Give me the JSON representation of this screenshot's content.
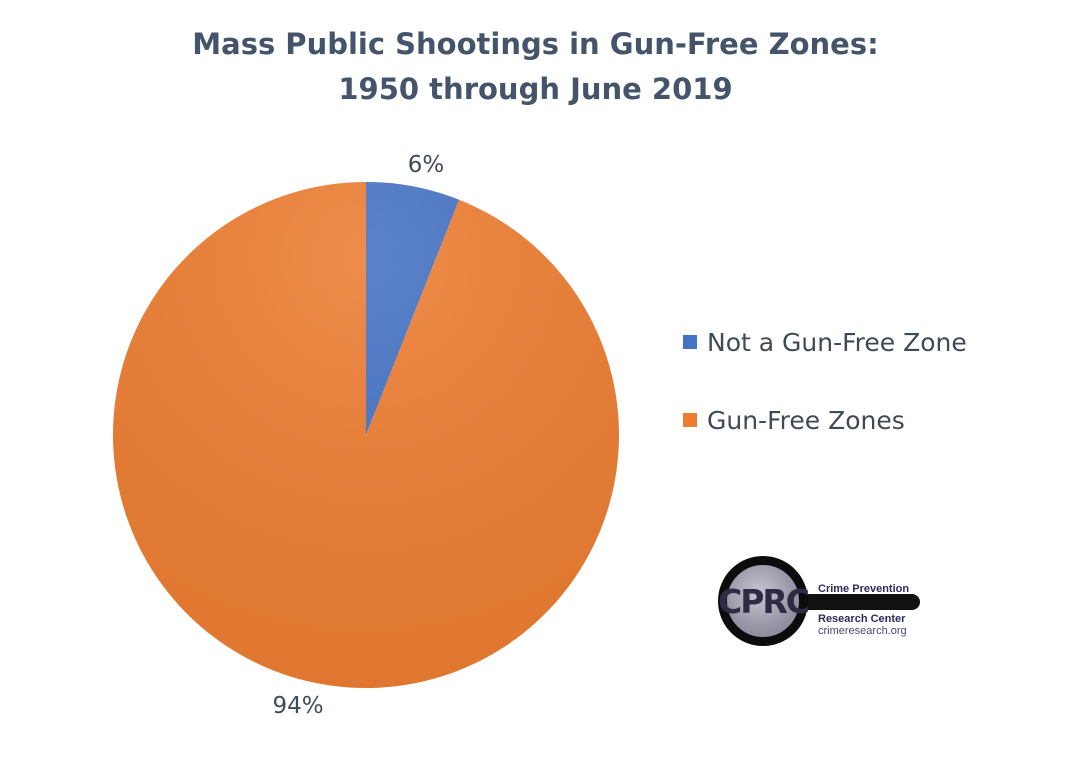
{
  "chart_data": {
    "type": "pie",
    "title": "Mass Public Shootings in Gun-Free Zones:",
    "subtitle": "1950 through June 2019",
    "categories": [
      "Not a Gun-Free Zone",
      "Gun-Free Zones"
    ],
    "values": [
      6,
      94
    ],
    "data_labels": [
      "6%",
      "94%"
    ],
    "colors": [
      "#4472c4",
      "#ed7d31"
    ],
    "legend_position": "right"
  },
  "logo": {
    "mark": "CPRC",
    "line1": "Crime Prevention",
    "line2": "Research Center",
    "line3": "crimeresearch.org"
  }
}
